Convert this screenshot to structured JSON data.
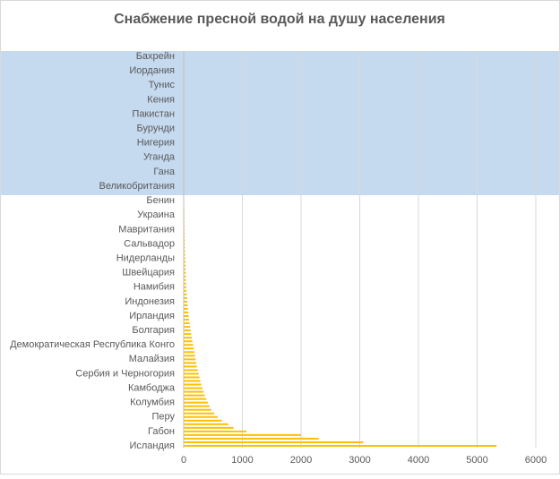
{
  "chart_data": {
    "type": "barh",
    "title": "Снабжение пресной водой на душу населения",
    "categories": [
      null,
      "Бахрейн",
      null,
      null,
      null,
      "Иордания",
      null,
      null,
      null,
      "Тунис",
      null,
      null,
      null,
      "Кения",
      null,
      null,
      null,
      "Пакистан",
      null,
      null,
      null,
      "Бурунди",
      null,
      null,
      null,
      "Нигерия",
      null,
      null,
      null,
      "Уганда",
      null,
      null,
      null,
      "Гана",
      null,
      null,
      null,
      "Великобритания",
      null,
      null,
      null,
      "Бенин",
      null,
      null,
      null,
      "Украина",
      null,
      null,
      null,
      "Мавритания",
      null,
      null,
      null,
      "Сальвадор",
      null,
      null,
      null,
      "Нидерланды",
      null,
      null,
      null,
      "Швейцария",
      null,
      null,
      null,
      "Намибия",
      null,
      null,
      null,
      "Индонезия",
      null,
      null,
      null,
      "Ирландия",
      null,
      null,
      null,
      "Болгария",
      null,
      null,
      null,
      "Демократическая Республика Конго",
      null,
      null,
      null,
      "Малайзия",
      null,
      null,
      null,
      "Сербия и Черногория",
      null,
      null,
      null,
      "Камбоджа",
      null,
      null,
      null,
      "Колумбия",
      null,
      null,
      null,
      "Перу",
      null,
      null,
      null,
      "Габон",
      null,
      null,
      null,
      "Исландия"
    ],
    "values": [
      0,
      0,
      0,
      0,
      0,
      0,
      0,
      0,
      1,
      1,
      1,
      1,
      1,
      1,
      1,
      1,
      2,
      2,
      2,
      2,
      2,
      2,
      3,
      3,
      3,
      3,
      3,
      4,
      4,
      4,
      4,
      5,
      5,
      5,
      5,
      6,
      6,
      6,
      7,
      7,
      8,
      8,
      9,
      10,
      11,
      12,
      13,
      14,
      15,
      16,
      17,
      18,
      19,
      20,
      22,
      24,
      26,
      28,
      30,
      32,
      34,
      36,
      38,
      40,
      43,
      46,
      50,
      54,
      58,
      62,
      68,
      74,
      80,
      86,
      92,
      100,
      108,
      118,
      128,
      138,
      150,
      162,
      175,
      185,
      195,
      205,
      215,
      225,
      240,
      255,
      270,
      285,
      300,
      320,
      340,
      360,
      385,
      410,
      440,
      470,
      520,
      580,
      650,
      760,
      850,
      1070,
      2000,
      2300,
      3060,
      5330
    ],
    "color": "#ffc000",
    "xlim": [
      0,
      6000
    ],
    "xticks": [
      0,
      1000,
      2000,
      3000,
      4000,
      5000,
      6000
    ],
    "grid": true
  }
}
